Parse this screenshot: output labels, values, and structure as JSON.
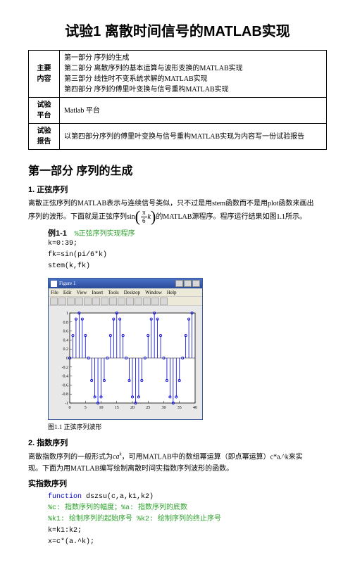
{
  "title": "试验1 离散时间信号的MATLAB实现",
  "meta": {
    "row1_label": "主要\n内容",
    "row1_body": "第一部分 序列的生成\n第二部分 离散序列的基本运算与波形变换的MATLAB实现\n第三部分 线性时不变系统求解的MATLAB实现\n第四部分 序列的傅里叶变换与信号重构MATLAB实现",
    "row2_label": "试验\n平台",
    "row2_body": "Matlab 平台",
    "row3_label": "试验\n报告",
    "row3_body": "以第四部分序列的傅里叶变换与信号重构MATLAB实现为内容写一份试验报告"
  },
  "sec1_h": "第一部分 序列的生成",
  "sub1_h": "1. 正弦序列",
  "para1a": "离散正弦序列的MATLAB表示与连续信号类似，只不过是用stem函数而不是用plot函数来画出",
  "para1b_pre": "序列的波形。下面就是正弦序列sin",
  "para1b_post": "的MATLAB源程序。程序运行结果如图1.1所示。",
  "frac_num": "π",
  "frac_den": "6",
  "frac_k": "k",
  "ex1_label": "例1-1",
  "ex1_comment": "%正弦序列实现程序",
  "code1_l1": "k=0:39;",
  "code1_l2": "fk=sin(pi/6*k)",
  "code1_l3": "stem(k,fk)",
  "figure": {
    "title": "Figure 1",
    "menus": [
      "File",
      "Edit",
      "View",
      "Insert",
      "Tools",
      "Desktop",
      "Window",
      "Help"
    ],
    "toolbar_count": 14,
    "bg": "#e8e8e8",
    "axes_bg": "#ffffff",
    "stem_color": "#0000dd",
    "grid_color": "#000000",
    "xlim": [
      0,
      40
    ],
    "ylim": [
      -1,
      1
    ],
    "xticks": [
      0,
      5,
      10,
      15,
      20,
      25,
      30,
      35,
      40
    ],
    "yticks": [
      -1,
      -0.8,
      -0.6,
      -0.4,
      -0.2,
      0,
      0.2,
      0.4,
      0.6,
      0.8,
      1
    ],
    "n_stems": 40,
    "sin_period": 12
  },
  "caption1": "图1.1 正弦序列波形",
  "sub2_h": "2. 指数序列",
  "para2a_pre": "离散指数序列的一般形式为",
  "para2a_mid": "，可用MATLAB中的数组幂运算（即点幂运算）c*a.^k来实",
  "para2a_formula": "ca^k",
  "para2b": "现。下面为用MATLAB编写绘制离散时间实指数序列波形的函数。",
  "sub3_h": "实指数序列",
  "code2_l1_kw": "function",
  "code2_l1_rest": " dszsu(c,a,k1,k2)",
  "code2_l2": "%c: 指数序列的幅度；%a: 指数序列的底数",
  "code2_l3": "%k1: 绘制序列的起始序号 %k2: 绘制序列的终止序号",
  "code2_l4": "k=k1:k2;",
  "code2_l5": "x=c*(a.^k);"
}
